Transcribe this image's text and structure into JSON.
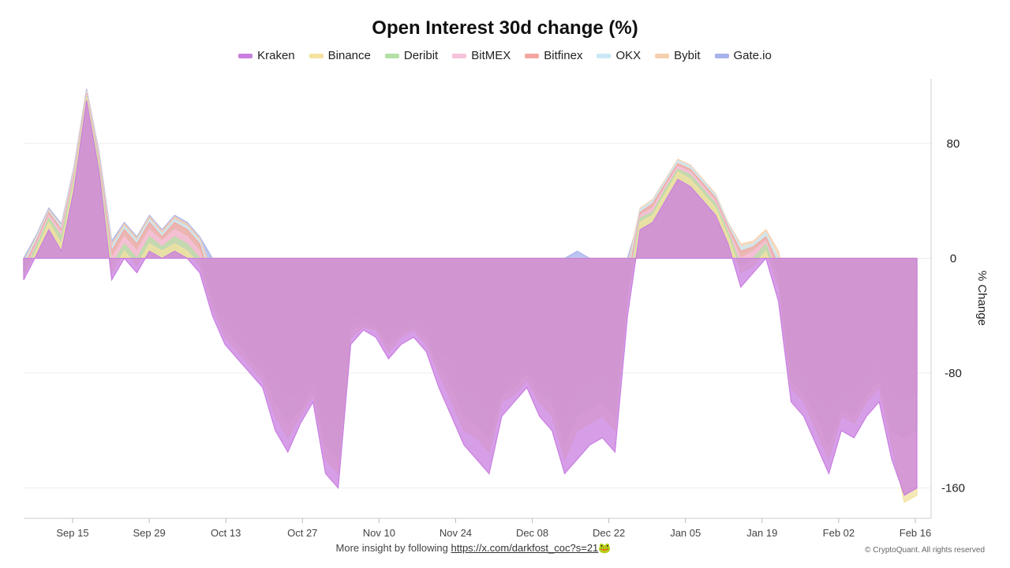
{
  "chart_data": {
    "type": "area",
    "title": "Open Interest 30d change (%)",
    "ylabel": "% Change",
    "ylim": [
      -180,
      125
    ],
    "yticks": [
      80,
      0,
      -80,
      -160
    ],
    "x_labels": [
      "Sep 15",
      "Sep 29",
      "Oct 13",
      "Oct 27",
      "Nov 10",
      "Nov 24",
      "Dec 08",
      "Dec 22",
      "Jan 05",
      "Jan 19",
      "Feb 02",
      "Feb 16"
    ],
    "legend_placement": "top-center",
    "watermark": "CryptoQuant",
    "series": [
      {
        "name": "Kraken",
        "color": "#c97ee0",
        "values": [
          -15,
          2,
          20,
          5,
          48,
          110,
          60,
          -15,
          0,
          -10,
          5,
          0,
          5,
          0,
          -10,
          -40,
          -60,
          -70,
          -80,
          -90,
          -120,
          -135,
          -115,
          -100,
          -150,
          -160,
          -60,
          -50,
          -55,
          -70,
          -60,
          -55,
          -65,
          -90,
          -110,
          -130,
          -140,
          -150,
          -110,
          -100,
          -90,
          -110,
          -120,
          -150,
          -140,
          -130,
          -125,
          -135,
          -40,
          20,
          25,
          40,
          55,
          50,
          40,
          30,
          10,
          -20,
          -10,
          0,
          -30,
          -100,
          -110,
          -130,
          -150,
          -120,
          -125,
          -110,
          -100,
          -140,
          -165,
          -160
        ]
      },
      {
        "name": "Binance",
        "color": "#f3e2a0",
        "values": [
          -12,
          5,
          25,
          10,
          52,
          112,
          62,
          -10,
          5,
          -5,
          10,
          5,
          10,
          5,
          -5,
          -35,
          -55,
          -65,
          -75,
          -85,
          -110,
          -125,
          -110,
          -95,
          -140,
          -150,
          -55,
          -48,
          -50,
          -65,
          -55,
          -50,
          -60,
          -80,
          -100,
          -120,
          -125,
          -135,
          -100,
          -95,
          -85,
          -100,
          -110,
          -140,
          -120,
          -115,
          -110,
          -120,
          -30,
          25,
          30,
          45,
          60,
          55,
          45,
          35,
          15,
          -10,
          -5,
          5,
          -20,
          -90,
          -100,
          -120,
          -140,
          -110,
          -115,
          -100,
          -90,
          -130,
          -170,
          -165
        ]
      },
      {
        "name": "Deribit",
        "color": "#b5e0a5",
        "values": [
          -10,
          8,
          28,
          15,
          55,
          113,
          65,
          -5,
          10,
          0,
          15,
          8,
          15,
          10,
          0,
          -30,
          -50,
          -60,
          -70,
          -80,
          -100,
          -115,
          -105,
          -90,
          -130,
          -140,
          -50,
          -45,
          -48,
          -60,
          -52,
          -48,
          -55,
          -75,
          -90,
          -110,
          -115,
          -125,
          -95,
          -90,
          -80,
          -95,
          -100,
          -130,
          -110,
          -105,
          -100,
          -110,
          -25,
          28,
          32,
          48,
          62,
          58,
          48,
          38,
          18,
          -5,
          0,
          10,
          -15,
          -85,
          -95,
          -110,
          -130,
          -105,
          -110,
          -95,
          -85,
          -120,
          -125,
          -120
        ]
      },
      {
        "name": "BitMEX",
        "color": "#f6c2dc",
        "values": [
          -8,
          10,
          30,
          18,
          58,
          114,
          68,
          0,
          15,
          5,
          20,
          12,
          20,
          15,
          5,
          -25,
          -45,
          -55,
          -65,
          -75,
          -90,
          -105,
          -100,
          -85,
          -120,
          -130,
          -45,
          -42,
          -45,
          -55,
          -48,
          -45,
          -50,
          -70,
          -80,
          -100,
          -105,
          -115,
          -90,
          -85,
          -75,
          -90,
          -95,
          -120,
          -100,
          -95,
          -90,
          -100,
          -20,
          30,
          35,
          50,
          64,
          60,
          50,
          40,
          20,
          0,
          5,
          12,
          -10,
          -80,
          -90,
          -105,
          -120,
          -100,
          -105,
          -90,
          -80,
          -110,
          -120,
          -115
        ]
      },
      {
        "name": "Bitfinex",
        "color": "#f3a7a0",
        "values": [
          -6,
          12,
          32,
          20,
          60,
          115,
          70,
          5,
          20,
          10,
          25,
          15,
          25,
          20,
          10,
          -20,
          -40,
          -50,
          -60,
          -70,
          -80,
          -95,
          -95,
          -80,
          -110,
          -120,
          -40,
          -40,
          -42,
          -50,
          -45,
          -42,
          -45,
          -65,
          -70,
          -90,
          -95,
          -105,
          -85,
          -80,
          -70,
          -85,
          -90,
          -110,
          -90,
          -85,
          -80,
          -90,
          -15,
          32,
          38,
          52,
          66,
          62,
          52,
          42,
          22,
          5,
          8,
          15,
          -5,
          -70,
          -80,
          -95,
          -105,
          -90,
          -95,
          -80,
          -70,
          -95,
          -100,
          -95
        ]
      },
      {
        "name": "OKX",
        "color": "#c9e8f4",
        "values": [
          -4,
          14,
          33,
          22,
          62,
          116,
          72,
          8,
          22,
          12,
          27,
          17,
          27,
          22,
          12,
          -15,
          -35,
          -45,
          -52,
          -60,
          -65,
          -75,
          -80,
          -70,
          -95,
          -100,
          -35,
          -38,
          -40,
          -45,
          -42,
          -40,
          -42,
          -60,
          -62,
          -80,
          -85,
          -95,
          -78,
          -75,
          -65,
          -78,
          -82,
          -100,
          -80,
          -75,
          -70,
          -80,
          -10,
          34,
          40,
          54,
          68,
          64,
          54,
          44,
          24,
          8,
          10,
          18,
          0,
          -55,
          -65,
          -75,
          -85,
          -75,
          -78,
          -65,
          -58,
          -75,
          -80,
          -70
        ]
      },
      {
        "name": "Bybit",
        "color": "#f6cfae",
        "values": [
          -2,
          15,
          34,
          23,
          63,
          117,
          73,
          10,
          24,
          14,
          29,
          19,
          29,
          24,
          14,
          -10,
          -28,
          -35,
          -40,
          -45,
          -45,
          -50,
          -55,
          -55,
          -70,
          -75,
          -30,
          -35,
          -38,
          -40,
          -38,
          -36,
          -38,
          -50,
          -52,
          -65,
          -68,
          -75,
          -68,
          -65,
          -58,
          -68,
          -72,
          -85,
          -68,
          -62,
          -58,
          -65,
          -5,
          35,
          41,
          55,
          69,
          65,
          55,
          45,
          25,
          10,
          12,
          20,
          5,
          -35,
          -45,
          -55,
          -60,
          -55,
          -58,
          -50,
          -45,
          -55,
          -60,
          -50
        ]
      },
      {
        "name": "Gate.io",
        "color": "#a6b2ec",
        "values": [
          0,
          16,
          35,
          24,
          64,
          118,
          74,
          12,
          25,
          15,
          30,
          20,
          30,
          25,
          15,
          0,
          -30,
          -28,
          -25,
          -22,
          -15,
          -10,
          -12,
          -18,
          -20,
          -10,
          0,
          -8,
          -15,
          -20,
          -25,
          -30,
          -35,
          -40,
          -45,
          -42,
          -40,
          -45,
          -40,
          -35,
          -30,
          -25,
          -10,
          0,
          5,
          0,
          -5,
          0,
          0,
          30,
          36,
          50,
          60,
          55,
          45,
          35,
          15,
          0,
          5,
          10,
          0,
          -10,
          -20,
          -25,
          -30,
          -25,
          -30,
          -25,
          -20,
          -30,
          -25,
          -20
        ]
      }
    ]
  },
  "footer": {
    "text": "More insight by following",
    "link": "https://x.com/darkfost_coc?s=21",
    "emoji": "🐸"
  },
  "copyright": "© CryptoQuant. All rights reserved"
}
